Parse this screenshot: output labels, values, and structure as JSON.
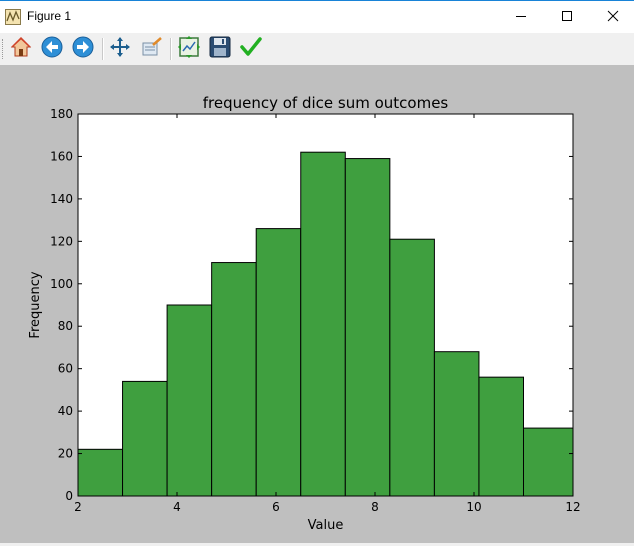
{
  "window": {
    "title": "Figure 1",
    "controls": [
      "minimize",
      "maximize",
      "close"
    ]
  },
  "toolbar": {
    "buttons": [
      {
        "name": "home-button",
        "icon": "home-icon"
      },
      {
        "name": "back-button",
        "icon": "back-arrow-icon"
      },
      {
        "name": "forward-button",
        "icon": "forward-arrow-icon"
      },
      {
        "name": "pan-button",
        "icon": "move-arrows-icon"
      },
      {
        "name": "zoom-button",
        "icon": "zoom-rect-icon"
      },
      {
        "name": "subplots-button",
        "icon": "subplots-icon"
      },
      {
        "name": "save-button",
        "icon": "floppy-disk-icon"
      },
      {
        "name": "edit-axes-button",
        "icon": "checkmark-icon"
      }
    ]
  },
  "colors": {
    "figure_bg": "#bfbfbf",
    "axes_bg": "#ffffff",
    "bar_fill": "#3f9f3f",
    "bar_edge": "#000000"
  },
  "chart_data": {
    "type": "bar",
    "title": "frequency of dice sum outcomes",
    "xlabel": "Value",
    "ylabel": "Frequency",
    "xlim": [
      2,
      12
    ],
    "ylim": [
      0,
      180
    ],
    "xticks": [
      2,
      4,
      6,
      8,
      10,
      12
    ],
    "yticks": [
      0,
      20,
      40,
      60,
      80,
      100,
      120,
      140,
      160,
      180
    ],
    "bin_edges": [
      2,
      2.9,
      3.8,
      4.7,
      5.6,
      6.5,
      7.4,
      8.3,
      9.2,
      10.1,
      11,
      12
    ],
    "values": [
      22,
      54,
      90,
      110,
      126,
      162,
      159,
      121,
      68,
      56,
      32
    ],
    "grid": false
  }
}
